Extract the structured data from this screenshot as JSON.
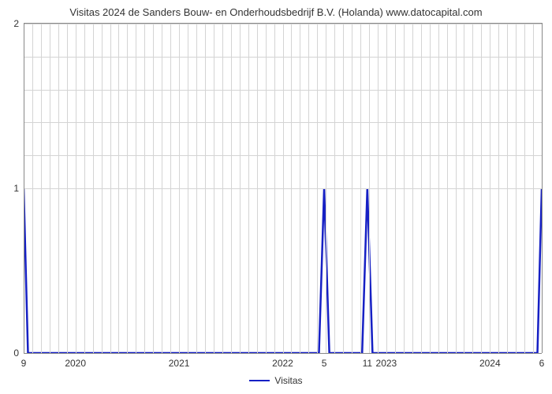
{
  "title": "Visitas 2024 de Sanders Bouw- en Onderhoudsbedrijf B.V. (Holanda) www.datocapital.com",
  "chart": {
    "type": "line",
    "background_color": "#ffffff",
    "grid_color": "#d4d4d4",
    "axis_border_color": "#888888",
    "title_fontsize": 13,
    "label_fontsize": 12,
    "label_color": "#333333",
    "x": {
      "min": 0,
      "max": 60,
      "ticks": [
        {
          "pos": 6,
          "label": "2020"
        },
        {
          "pos": 18,
          "label": "2021"
        },
        {
          "pos": 30,
          "label": "2022"
        },
        {
          "pos": 42,
          "label": "2023"
        },
        {
          "pos": 54,
          "label": "2024"
        }
      ],
      "minor_grid_step": 1
    },
    "y": {
      "min": 0,
      "max": 2,
      "ticks": [
        0,
        1,
        2
      ],
      "minor_ticks_between": 4
    },
    "series": {
      "name": "Visitas",
      "color": "#1620c4",
      "line_width": 2.5,
      "points": [
        {
          "x": 0,
          "y": 1
        },
        {
          "x": 0.5,
          "y": 0
        },
        {
          "x": 34.2,
          "y": 0
        },
        {
          "x": 34.8,
          "y": 1
        },
        {
          "x": 35.4,
          "y": 0
        },
        {
          "x": 39.2,
          "y": 0
        },
        {
          "x": 39.8,
          "y": 1
        },
        {
          "x": 40.4,
          "y": 0
        },
        {
          "x": 59.5,
          "y": 0
        },
        {
          "x": 60,
          "y": 1
        }
      ],
      "point_labels": [
        {
          "x": 0,
          "label": "9",
          "below": true
        },
        {
          "x": 34.8,
          "label": "5",
          "below": true
        },
        {
          "x": 39.8,
          "label": "11",
          "below": true
        },
        {
          "x": 60,
          "label": "6",
          "below": true
        }
      ]
    },
    "legend": {
      "label": "Visitas"
    }
  }
}
